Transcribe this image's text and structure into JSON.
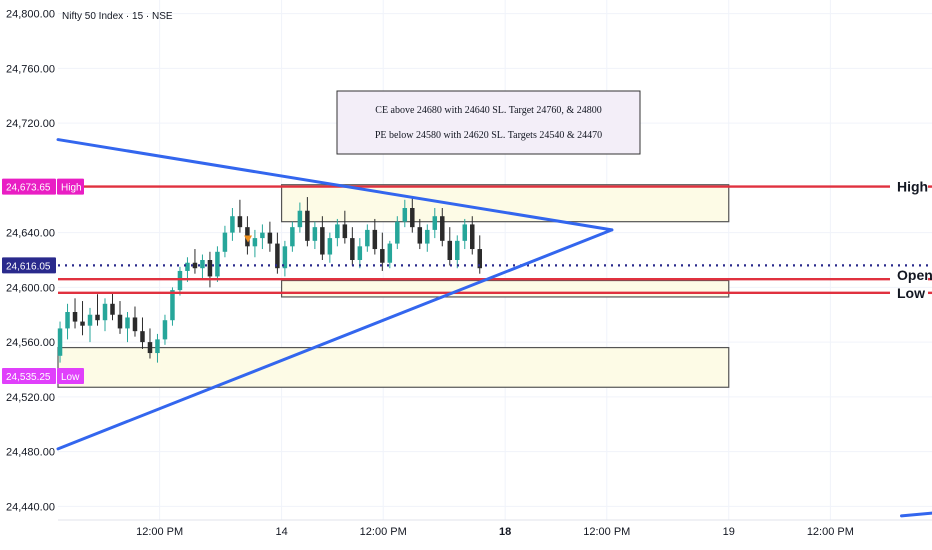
{
  "chart_data": {
    "type": "candlestick",
    "instrument": "Nifty 50 Index · 15 · NSE",
    "y_axis": {
      "range": [
        24430,
        24810
      ],
      "ticks": [
        {
          "value": 24800,
          "label": "24,800.00"
        },
        {
          "value": 24760,
          "label": "24,760.00"
        },
        {
          "value": 24720,
          "label": "24,720.00"
        },
        {
          "value": 24640,
          "label": "24,640.00"
        },
        {
          "value": 24600,
          "label": "24,600.00"
        },
        {
          "value": 24560,
          "label": "24,560.00"
        },
        {
          "value": 24520,
          "label": "24,520.00"
        },
        {
          "value": 24480,
          "label": "24,480.00"
        },
        {
          "value": 24440,
          "label": "24,440.00"
        }
      ]
    },
    "x_axis": {
      "range": [
        0,
        8.6
      ],
      "ticks": [
        {
          "t": 1.0,
          "label": "12:00 PM",
          "bold": false
        },
        {
          "t": 2.2,
          "label": "14",
          "bold": false
        },
        {
          "t": 3.2,
          "label": "12:00 PM",
          "bold": false
        },
        {
          "t": 4.4,
          "label": "18",
          "bold": true
        },
        {
          "t": 5.4,
          "label": "12:00 PM",
          "bold": false
        },
        {
          "t": 6.6,
          "label": "19",
          "bold": false
        },
        {
          "t": 7.6,
          "label": "12:00 PM",
          "bold": false
        }
      ]
    },
    "candles": [
      [
        24550,
        24575,
        24545,
        24570
      ],
      [
        24570,
        24588,
        24562,
        24582
      ],
      [
        24582,
        24592,
        24570,
        24575
      ],
      [
        24575,
        24590,
        24565,
        24572
      ],
      [
        24572,
        24585,
        24560,
        24580
      ],
      [
        24580,
        24595,
        24572,
        24576
      ],
      [
        24576,
        24592,
        24568,
        24588
      ],
      [
        24588,
        24596,
        24576,
        24580
      ],
      [
        24580,
        24590,
        24566,
        24570
      ],
      [
        24570,
        24582,
        24560,
        24578
      ],
      [
        24578,
        24586,
        24564,
        24568
      ],
      [
        24568,
        24578,
        24555,
        24560
      ],
      [
        24560,
        24570,
        24548,
        24552
      ],
      [
        24552,
        24566,
        24545,
        24562
      ],
      [
        24562,
        24580,
        24558,
        24576
      ],
      [
        24576,
        24600,
        24572,
        24598
      ],
      [
        24598,
        24615,
        24594,
        24612
      ],
      [
        24612,
        24622,
        24604,
        24618
      ],
      [
        24618,
        24628,
        24610,
        24614
      ],
      [
        24614,
        24624,
        24606,
        24620
      ],
      [
        24620,
        24626,
        24600,
        24608
      ],
      [
        24608,
        24630,
        24604,
        24626
      ],
      [
        24626,
        24645,
        24622,
        24640
      ],
      [
        24640,
        24658,
        24634,
        24652
      ],
      [
        24652,
        24664,
        24640,
        24644
      ],
      [
        24644,
        24652,
        24624,
        24630
      ],
      [
        24630,
        24642,
        24622,
        24636
      ],
      [
        24636,
        24646,
        24628,
        24640
      ],
      [
        24640,
        24648,
        24626,
        24632
      ],
      [
        24632,
        24640,
        24610,
        24614
      ],
      [
        24614,
        24634,
        24608,
        24630
      ],
      [
        24630,
        24648,
        24626,
        24644
      ],
      [
        24644,
        24662,
        24640,
        24656
      ],
      [
        24656,
        24666,
        24630,
        24634
      ],
      [
        24634,
        24648,
        24628,
        24644
      ],
      [
        24644,
        24652,
        24620,
        24624
      ],
      [
        24624,
        24640,
        24618,
        24636
      ],
      [
        24636,
        24650,
        24630,
        24646
      ],
      [
        24646,
        24656,
        24632,
        24636
      ],
      [
        24636,
        24644,
        24616,
        24620
      ],
      [
        24620,
        24636,
        24614,
        24630
      ],
      [
        24630,
        24646,
        24626,
        24642
      ],
      [
        24642,
        24650,
        24624,
        24628
      ],
      [
        24628,
        24640,
        24612,
        24618
      ],
      [
        24618,
        24634,
        24614,
        24632
      ],
      [
        24632,
        24652,
        24628,
        24648
      ],
      [
        24648,
        24664,
        24644,
        24658
      ],
      [
        24658,
        24666,
        24640,
        24644
      ],
      [
        24644,
        24650,
        24628,
        24632
      ],
      [
        24632,
        24646,
        24626,
        24642
      ],
      [
        24642,
        24658,
        24636,
        24652
      ],
      [
        24652,
        24658,
        24630,
        24634
      ],
      [
        24634,
        24644,
        24616,
        24620
      ],
      [
        24620,
        24638,
        24614,
        24634
      ],
      [
        24634,
        24650,
        24628,
        24646
      ],
      [
        24646,
        24652,
        24624,
        24628
      ],
      [
        24628,
        24638,
        24610,
        24614
      ]
    ],
    "candle_t_range": [
      0.02,
      4.15
    ],
    "horizontal_lines": [
      {
        "name": "high",
        "value": 24673.65,
        "label": "High",
        "badge": "24,673.65",
        "badge_tag": "High",
        "color": "#e0313f"
      },
      {
        "name": "open",
        "value": 24606,
        "label": "Open",
        "color": "#e0313f"
      },
      {
        "name": "low",
        "value": 24596,
        "label": "Low",
        "color": "#e0313f"
      },
      {
        "name": "last-price",
        "value": 24616.05,
        "badge": "24,616.05",
        "color": "#2a2a8c",
        "dotted": true
      },
      {
        "name": "low-marker",
        "value": 24535.25,
        "badge": "24,535.25",
        "badge_tag": "Low",
        "color": "#e040fb"
      }
    ],
    "zones": [
      {
        "name": "upper-zone",
        "t_start": 2.2,
        "t_end": 6.6,
        "top": 24675,
        "bottom": 24648
      },
      {
        "name": "middle-zone",
        "t_start": 2.2,
        "t_end": 6.6,
        "top": 24605,
        "bottom": 24593
      },
      {
        "name": "lower-zone",
        "t_start": 0.0,
        "t_end": 6.6,
        "top": 24556,
        "bottom": 24527
      }
    ],
    "trendlines": [
      {
        "name": "upper-trendline",
        "t1": 0.0,
        "v1": 24708,
        "t2": 5.45,
        "v2": 24642
      },
      {
        "name": "lower-trendline",
        "t1": 0.0,
        "v1": 24482,
        "t2": 5.45,
        "v2": 24642
      },
      {
        "name": "far-right-trendline",
        "t1": 8.3,
        "v1": 24433,
        "t2": 8.6,
        "v2": 24435
      }
    ],
    "annotation_lines": [
      "CE above 24680 with 24640 SL. Target 24760, &  24800",
      "PE below 24580 with 24620 SL. Targets 24540 & 24470"
    ],
    "marker": {
      "t": 1.87,
      "value": 24635,
      "color": "#ef8f1c"
    },
    "colors": {
      "up": "#26a69a",
      "down": "#2b2b2b",
      "trend": "#3366ee",
      "zone_fill": "#fdfbe6",
      "zone_stroke": "#555555"
    }
  }
}
